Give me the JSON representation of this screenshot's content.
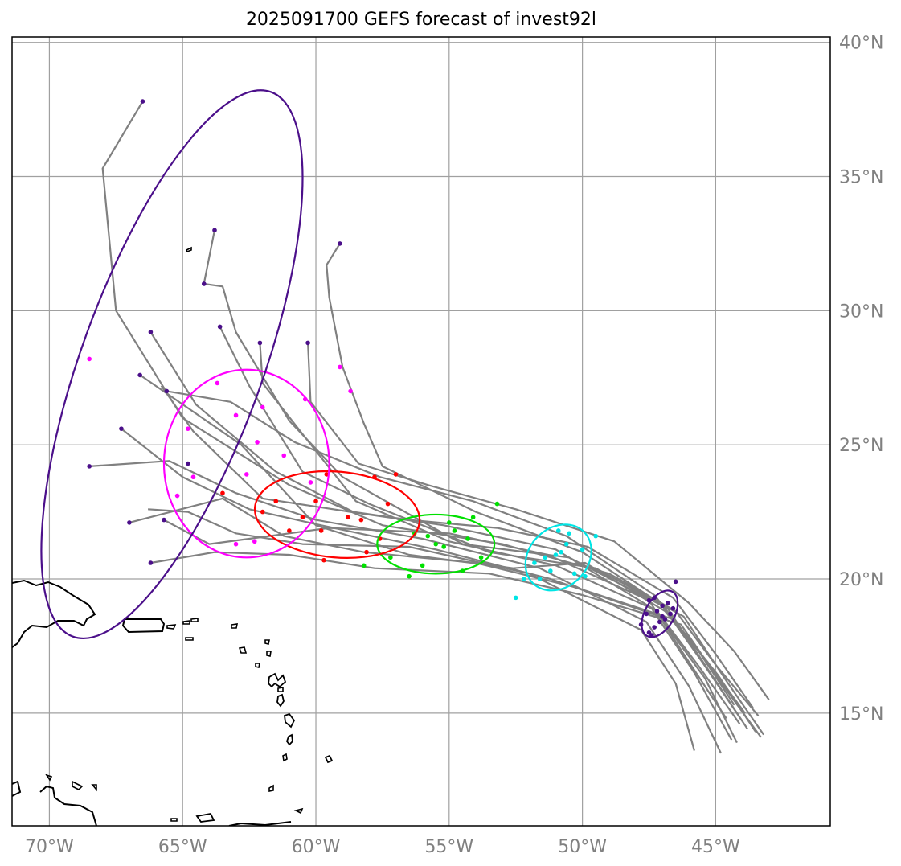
{
  "title": "2025091700 GEFS forecast of invest92l",
  "map": {
    "lon_range": [
      -71.4,
      -40.7
    ],
    "lat_range": [
      10.8,
      40.2
    ],
    "gridlines": true,
    "lon_ticks": [
      {
        "value": -70,
        "label": "70°W"
      },
      {
        "value": -65,
        "label": "65°W"
      },
      {
        "value": -60,
        "label": "60°W"
      },
      {
        "value": -55,
        "label": "55°W"
      },
      {
        "value": -50,
        "label": "50°W"
      },
      {
        "value": -45,
        "label": "45°W"
      }
    ],
    "lat_ticks": [
      {
        "value": 40,
        "label": "40°N"
      },
      {
        "value": 35,
        "label": "35°N"
      },
      {
        "value": 30,
        "label": "30°N"
      },
      {
        "value": 25,
        "label": "25°N"
      },
      {
        "value": 20,
        "label": "20°N"
      },
      {
        "value": 15,
        "label": "15°N"
      }
    ]
  },
  "colors": {
    "track": "#808080",
    "grid": "#a0a0a0",
    "coast": "#000000",
    "day1": "#4b0f8a",
    "day2": "#00e5e5",
    "day3": "#00e000",
    "day4": "#ff0000",
    "day5": "#ff00ff",
    "day6": "#4b0f8a"
  },
  "chart_data": {
    "type": "scatter",
    "ensemble_tracks": [
      [
        [
          -43.4,
          14.9
        ],
        [
          -45.0,
          16.8
        ],
        [
          -46.5,
          18.8
        ],
        [
          -49.0,
          20.2
        ],
        [
          -53.0,
          21.3
        ],
        [
          -57.5,
          22.0
        ],
        [
          -61.0,
          23.5
        ],
        [
          -65.0,
          26.0
        ],
        [
          -67.5,
          30.0
        ],
        [
          -68.0,
          35.3
        ],
        [
          -66.5,
          37.8
        ]
      ],
      [
        [
          -43.8,
          14.4
        ],
        [
          -45.2,
          16.5
        ],
        [
          -46.8,
          18.9
        ],
        [
          -50.0,
          21.0
        ],
        [
          -54.0,
          22.5
        ],
        [
          -57.5,
          24.2
        ],
        [
          -58.2,
          25.8
        ],
        [
          -59.0,
          27.9
        ],
        [
          -59.5,
          30.5
        ],
        [
          -59.6,
          31.7
        ],
        [
          -59.1,
          32.5
        ]
      ],
      [
        [
          -44.0,
          14.7
        ],
        [
          -45.5,
          16.9
        ],
        [
          -47.0,
          19.0
        ],
        [
          -50.5,
          20.8
        ],
        [
          -54.5,
          21.3
        ],
        [
          -59.0,
          23.8
        ],
        [
          -61.0,
          25.9
        ],
        [
          -63.0,
          29.2
        ],
        [
          -63.5,
          30.9
        ],
        [
          -64.2,
          31.0
        ],
        [
          -63.8,
          33.0
        ]
      ],
      [
        [
          -43.2,
          14.2
        ],
        [
          -44.6,
          16.2
        ],
        [
          -46.2,
          18.6
        ],
        [
          -49.5,
          20.4
        ],
        [
          -53.5,
          21.0
        ],
        [
          -58.0,
          22.8
        ],
        [
          -60.5,
          24.0
        ],
        [
          -62.5,
          27.2
        ],
        [
          -63.6,
          29.4
        ]
      ],
      [
        [
          -44.4,
          14.0
        ],
        [
          -45.8,
          16.5
        ],
        [
          -47.4,
          18.9
        ],
        [
          -51.0,
          20.5
        ],
        [
          -55.0,
          21.4
        ],
        [
          -58.5,
          22.9
        ],
        [
          -60.5,
          25.4
        ],
        [
          -62.0,
          27.3
        ],
        [
          -62.1,
          28.8
        ]
      ],
      [
        [
          -43.6,
          15.2
        ],
        [
          -45.0,
          17.2
        ],
        [
          -46.6,
          19.3
        ],
        [
          -49.8,
          21.2
        ],
        [
          -53.2,
          21.9
        ],
        [
          -56.5,
          22.2
        ],
        [
          -58.6,
          22.5
        ],
        [
          -61.5,
          24.0
        ],
        [
          -64.5,
          26.5
        ],
        [
          -66.2,
          29.2
        ]
      ],
      [
        [
          -44.2,
          13.9
        ],
        [
          -45.4,
          16.3
        ],
        [
          -47.1,
          18.6
        ],
        [
          -51.2,
          20.0
        ],
        [
          -55.5,
          21.1
        ],
        [
          -59.8,
          22.0
        ],
        [
          -62.5,
          22.6
        ],
        [
          -65.0,
          23.8
        ],
        [
          -67.3,
          25.6
        ]
      ],
      [
        [
          -43.0,
          15.5
        ],
        [
          -44.3,
          17.3
        ],
        [
          -46.0,
          19.1
        ],
        [
          -48.8,
          21.4
        ],
        [
          -52.5,
          22.6
        ],
        [
          -55.8,
          23.5
        ],
        [
          -58.4,
          24.3
        ],
        [
          -60.2,
          26.6
        ],
        [
          -60.3,
          28.8
        ]
      ],
      [
        [
          -44.8,
          13.5
        ],
        [
          -46.0,
          16.0
        ],
        [
          -47.6,
          18.4
        ],
        [
          -51.6,
          20.4
        ],
        [
          -56.0,
          21.5
        ],
        [
          -60.0,
          22.2
        ],
        [
          -63.0,
          23.2
        ],
        [
          -65.5,
          24.4
        ],
        [
          -68.5,
          24.2
        ]
      ],
      [
        [
          -43.9,
          15.0
        ],
        [
          -45.3,
          16.9
        ],
        [
          -46.9,
          18.8
        ],
        [
          -49.9,
          20.6
        ],
        [
          -52.6,
          20.4
        ],
        [
          -56.5,
          20.9
        ],
        [
          -60.0,
          22.0
        ],
        [
          -62.8,
          25.0
        ],
        [
          -66.6,
          27.6
        ]
      ],
      [
        [
          -44.1,
          14.6
        ],
        [
          -45.6,
          16.7
        ],
        [
          -47.2,
          18.8
        ],
        [
          -51.0,
          21.1
        ],
        [
          -55.2,
          22.0
        ],
        [
          -58.7,
          22.5
        ],
        [
          -62.0,
          23.0
        ],
        [
          -64.6,
          25.5
        ],
        [
          -65.8,
          27.2
        ]
      ],
      [
        [
          -43.5,
          14.3
        ],
        [
          -44.9,
          16.4
        ],
        [
          -46.6,
          18.5
        ],
        [
          -50.3,
          19.7
        ],
        [
          -54.0,
          20.6
        ],
        [
          -58.2,
          21.0
        ],
        [
          -61.2,
          21.6
        ],
        [
          -63.5,
          23.0
        ],
        [
          -67.0,
          22.1
        ]
      ],
      [
        [
          -44.6,
          14.8
        ],
        [
          -46.2,
          17.2
        ],
        [
          -47.5,
          19.2
        ],
        [
          -51.3,
          20.9
        ],
        [
          -55.0,
          21.7
        ],
        [
          -59.5,
          21.9
        ],
        [
          -62.5,
          21.5
        ],
        [
          -64.0,
          21.3
        ],
        [
          -65.7,
          22.2
        ]
      ],
      [
        [
          -43.3,
          14.1
        ],
        [
          -44.7,
          16.0
        ],
        [
          -46.3,
          18.3
        ],
        [
          -50.0,
          19.4
        ],
        [
          -53.5,
          20.2
        ],
        [
          -57.8,
          20.4
        ],
        [
          -61.0,
          20.9
        ],
        [
          -63.8,
          21.0
        ],
        [
          -66.2,
          20.6
        ]
      ],
      [
        [
          -44.3,
          15.3
        ],
        [
          -45.7,
          17.4
        ],
        [
          -47.3,
          19.4
        ],
        [
          -50.6,
          21.6
        ],
        [
          -54.1,
          22.9
        ],
        [
          -57.6,
          23.8
        ],
        [
          -60.8,
          25.1
        ],
        [
          -63.2,
          26.6
        ],
        [
          -65.6,
          27.0
        ]
      ],
      [
        [
          -45.8,
          13.6
        ],
        [
          -46.5,
          16.1
        ],
        [
          -47.8,
          18.1
        ],
        [
          -52.0,
          20.2
        ],
        [
          -56.5,
          21.2
        ],
        [
          -60.5,
          21.3
        ],
        [
          -63.0,
          21.7
        ],
        [
          -64.8,
          22.5
        ],
        [
          -66.3,
          22.6
        ]
      ]
    ],
    "points": {
      "day1": [
        [
          -47.5,
          19.2
        ],
        [
          -47.2,
          18.8
        ],
        [
          -46.9,
          18.5
        ],
        [
          -47.3,
          18.2
        ],
        [
          -47.0,
          19.0
        ],
        [
          -46.7,
          18.7
        ],
        [
          -47.6,
          18.7
        ],
        [
          -47.8,
          18.3
        ],
        [
          -46.5,
          19.9
        ],
        [
          -47.4,
          17.9
        ],
        [
          -46.8,
          19.1
        ],
        [
          -47.1,
          18.4
        ],
        [
          -46.6,
          18.9
        ],
        [
          -47.5,
          18.0
        ],
        [
          -47.0,
          18.6
        ],
        [
          -47.3,
          19.3
        ]
      ],
      "day2": [
        [
          -51.6,
          20.0
        ],
        [
          -50.5,
          21.7
        ],
        [
          -50.8,
          21.0
        ],
        [
          -51.2,
          20.3
        ],
        [
          -49.5,
          21.6
        ],
        [
          -50.0,
          21.1
        ],
        [
          -51.8,
          20.6
        ],
        [
          -52.5,
          19.3
        ],
        [
          -51.0,
          20.9
        ],
        [
          -50.3,
          20.2
        ],
        [
          -50.6,
          21.3
        ],
        [
          -51.4,
          20.8
        ],
        [
          -49.9,
          20.1
        ],
        [
          -52.2,
          20.0
        ],
        [
          -50.9,
          21.8
        ]
      ],
      "day3": [
        [
          -55.0,
          22.1
        ],
        [
          -53.2,
          22.8
        ],
        [
          -54.5,
          20.3
        ],
        [
          -55.8,
          21.6
        ],
        [
          -56.5,
          20.1
        ],
        [
          -54.1,
          22.3
        ],
        [
          -55.5,
          21.3
        ],
        [
          -56.0,
          20.5
        ],
        [
          -53.8,
          20.8
        ],
        [
          -57.2,
          20.8
        ],
        [
          -55.2,
          21.2
        ],
        [
          -54.8,
          21.8
        ],
        [
          -56.3,
          21.7
        ],
        [
          -58.2,
          20.5
        ],
        [
          -54.3,
          21.5
        ]
      ],
      "day4": [
        [
          -59.6,
          23.9
        ],
        [
          -57.8,
          23.8
        ],
        [
          -58.8,
          22.3
        ],
        [
          -60.5,
          22.3
        ],
        [
          -61.0,
          21.8
        ],
        [
          -59.7,
          20.7
        ],
        [
          -58.3,
          22.2
        ],
        [
          -57.3,
          22.8
        ],
        [
          -59.8,
          21.8
        ],
        [
          -61.5,
          22.9
        ],
        [
          -60.0,
          22.9
        ],
        [
          -58.1,
          21.0
        ],
        [
          -63.5,
          23.2
        ],
        [
          -57.6,
          21.5
        ],
        [
          -57.0,
          23.9
        ],
        [
          -62.0,
          22.5
        ]
      ],
      "day5": [
        [
          -68.5,
          28.2
        ],
        [
          -59.1,
          27.9
        ],
        [
          -58.7,
          27.0
        ],
        [
          -63.7,
          27.3
        ],
        [
          -62.0,
          26.4
        ],
        [
          -63.0,
          26.1
        ],
        [
          -61.2,
          24.6
        ],
        [
          -62.2,
          25.1
        ],
        [
          -64.6,
          23.8
        ],
        [
          -65.2,
          23.1
        ],
        [
          -64.8,
          25.6
        ],
        [
          -63.0,
          21.3
        ],
        [
          -60.4,
          26.7
        ],
        [
          -62.6,
          23.9
        ],
        [
          -62.3,
          21.4
        ],
        [
          -60.2,
          23.6
        ]
      ],
      "day6": [
        [
          -66.5,
          37.8
        ],
        [
          -59.1,
          32.5
        ],
        [
          -63.8,
          33.0
        ],
        [
          -64.2,
          31.0
        ],
        [
          -63.6,
          29.4
        ],
        [
          -62.1,
          28.8
        ],
        [
          -60.3,
          28.8
        ],
        [
          -66.2,
          29.2
        ],
        [
          -66.6,
          27.6
        ],
        [
          -65.6,
          27.0
        ],
        [
          -67.3,
          25.6
        ],
        [
          -68.5,
          24.2
        ],
        [
          -67.0,
          22.1
        ],
        [
          -65.7,
          22.2
        ],
        [
          -66.2,
          20.6
        ],
        [
          -64.8,
          24.3
        ]
      ]
    },
    "ellipses": {
      "day1": {
        "center": [
          -47.1,
          18.7
        ],
        "rx": 0.55,
        "ry": 0.95,
        "angle": 30
      },
      "day2": {
        "center": [
          -50.9,
          20.8
        ],
        "rx": 1.1,
        "ry": 1.35,
        "angle": 45
      },
      "day3": {
        "center": [
          -55.5,
          21.3
        ],
        "rx": 2.2,
        "ry": 1.1,
        "angle": 0
      },
      "day4": {
        "center": [
          -59.2,
          22.4
        ],
        "rx": 3.1,
        "ry": 1.6,
        "angle": 5
      },
      "day5": {
        "center": [
          -62.6,
          24.3
        ],
        "rx": 3.1,
        "ry": 3.5,
        "angle": 0
      },
      "day6": {
        "center": [
          -65.4,
          28.0
        ],
        "rx": 3.4,
        "ry": 10.8,
        "angle": 20
      }
    }
  }
}
